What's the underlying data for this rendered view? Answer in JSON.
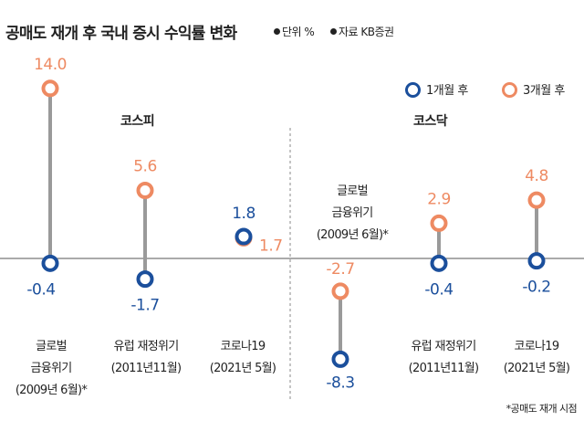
{
  "title": "공매도 재개 후 국내 증시 수익률 변화",
  "unit_label": "단위 %",
  "source_label": "자료 KB증권",
  "legend": {
    "one_month": "1개월 후",
    "three_month": "3개월 후"
  },
  "groups": {
    "kospi": "코스피",
    "kosdaq": "코스닥"
  },
  "categories": [
    {
      "line1": "글로벌",
      "line2": "금융위기",
      "line3": "(2009년 6월)*"
    },
    {
      "line1": "유럽 재정위기",
      "line2": "(2011년11월)"
    },
    {
      "line1": "코로나19",
      "line2": "(2021년 5월)"
    },
    {
      "line1": "글로벌",
      "line2": "금융위기",
      "line3": "(2009년 6월)*"
    },
    {
      "line1": "유럽 재정위기",
      "line2": "(2011년11월)"
    },
    {
      "line1": "코로나19",
      "line2": "(2021년 5월)"
    }
  ],
  "footnote": "*공매도 재개 시점",
  "colors": {
    "one_month": "#1b4f9c",
    "three_month": "#ee8a62",
    "stem": "#9a9a9a"
  },
  "chart_data": {
    "type": "scatter",
    "title": "공매도 재개 후 국내 증시 수익률 변화",
    "unit": "%",
    "group_labels": [
      "코스피",
      "코스닥"
    ],
    "categories": [
      "글로벌 금융위기 (2009년 6월)*",
      "유럽 재정위기 (2011년11월)",
      "코로나19 (2021년 5월)",
      "글로벌 금융위기 (2009년 6월)*",
      "유럽 재정위기 (2011년11월)",
      "코로나19 (2021년 5월)"
    ],
    "series": [
      {
        "name": "1개월 후",
        "values": [
          -0.4,
          -1.7,
          1.8,
          -8.3,
          -0.4,
          -0.2
        ],
        "labels": [
          "-0.4",
          "-1.7",
          "1.8",
          "-8.3",
          "-0.4",
          "-0.2"
        ]
      },
      {
        "name": "3개월 후",
        "values": [
          14.0,
          5.6,
          1.7,
          -2.7,
          2.9,
          4.8
        ],
        "labels": [
          "14.0",
          "5.6",
          "1.7",
          "-2.7",
          "2.9",
          "4.8"
        ]
      }
    ]
  }
}
